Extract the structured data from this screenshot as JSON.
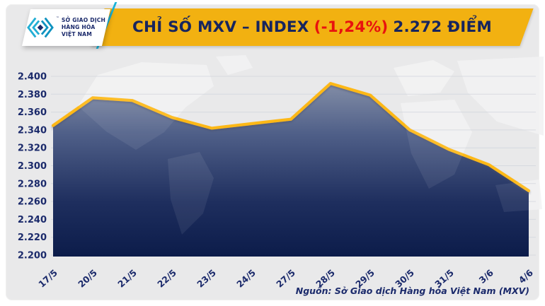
{
  "header": {
    "title_prefix": "CHỈ SỐ MXV – INDEX",
    "title_change": "(-1,24%)",
    "title_suffix": "2.272 ĐIỂM",
    "logo": {
      "line1": "SỞ GIAO DỊCH",
      "line2": "HÀNG HÓA",
      "line3": "VIỆT NAM",
      "tm": "™"
    }
  },
  "footer": {
    "source": "Nguồn: Sở Giao dịch Hàng hóa Việt Nam (MXV)"
  },
  "colors": {
    "banner_gold": "#f2b111",
    "line_gold": "#fdb813",
    "navy_text": "#1b2a6b",
    "red_change": "#e8120e",
    "teal_logo": "#19b2d8",
    "card_bg": "#e9e9ea",
    "gridline": "#d6d9df"
  },
  "chart_data": {
    "type": "area",
    "title": "CHỈ SỐ MXV – INDEX (-1,24%) 2.272 ĐIỂM",
    "xlabel": "",
    "ylabel": "",
    "categories": [
      "17/5",
      "20/5",
      "21/5",
      "22/5",
      "23/5",
      "24/5",
      "27/5",
      "28/5",
      "29/5",
      "30/5",
      "31/5",
      "3/6",
      "4/6"
    ],
    "values": [
      2345,
      2376,
      2373,
      2354,
      2342,
      2347,
      2352,
      2392,
      2379,
      2340,
      2318,
      2301,
      2272
    ],
    "ylim": [
      2200,
      2400
    ],
    "ytick_values": [
      2400,
      2380,
      2360,
      2340,
      2320,
      2300,
      2280,
      2260,
      2240,
      2220,
      2200
    ],
    "ytick_labels": [
      "2.400",
      "2.380",
      "2.360",
      "2.340",
      "2.320",
      "2.300",
      "2.280",
      "2.260",
      "2.240",
      "2.220",
      "2.200"
    ],
    "grid": "horizontal",
    "legend": "none",
    "line_color": "#fdb813",
    "fill_gradient": [
      "#8a94ab",
      "#4f5f88",
      "#1e2e5e",
      "#0c1c4a"
    ]
  }
}
